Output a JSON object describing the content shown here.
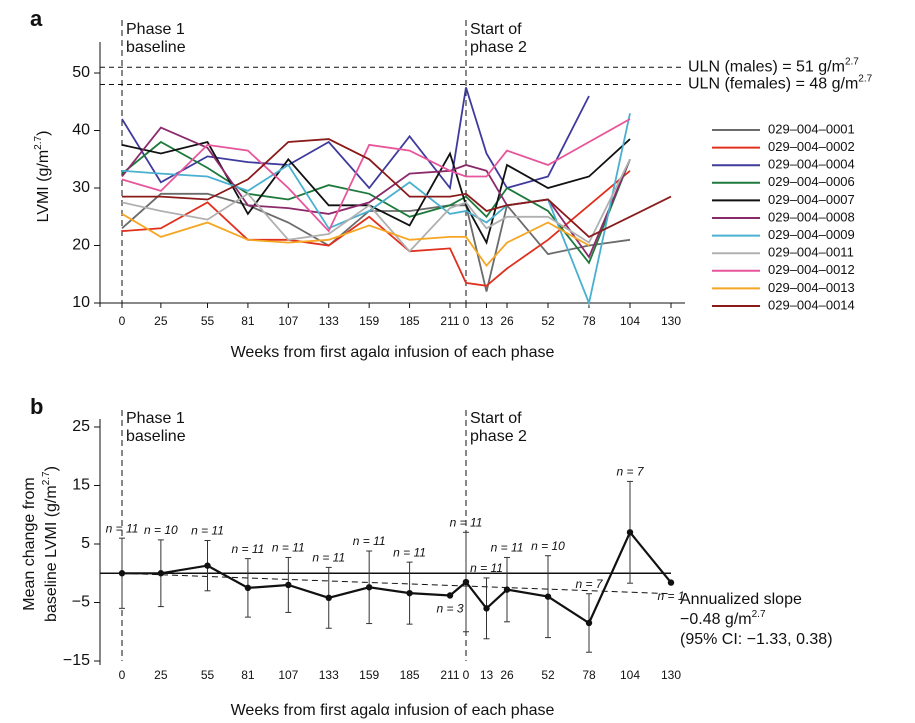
{
  "chart_data": [
    {
      "type": "line",
      "panel": "a",
      "ylabel": [
        "LVMI (g/m",
        "2.7",
        ")"
      ],
      "xlabel": "Weeks from first agalα infusion of each phase",
      "ylim": [
        10,
        54
      ],
      "yticks": [
        10,
        20,
        30,
        40,
        50
      ],
      "phases": [
        {
          "annotation": [
            "Phase 1",
            "baseline"
          ],
          "xlim": [
            0,
            211
          ],
          "x": [
            0,
            25,
            55,
            81,
            107,
            133,
            159,
            185,
            211
          ]
        },
        {
          "annotation": [
            "Start of",
            "phase 2"
          ],
          "xlim": [
            0,
            130
          ],
          "x": [
            0,
            13,
            26,
            52,
            78,
            104,
            130
          ]
        }
      ],
      "reference_lines": [
        {
          "value": 51,
          "label": [
            "ULN (males) = 51 g/m",
            "2.7"
          ]
        },
        {
          "value": 48,
          "label": [
            "ULN (females) = 48 g/m",
            "2.7"
          ]
        }
      ],
      "series": [
        {
          "name": "029–004–0001",
          "color": "#6b6b6b",
          "values": [
            [
              23,
              29,
              29,
              27,
              24,
              20,
              26,
              26,
              27
            ],
            [
              27,
              12,
              27,
              18.5,
              20,
              21,
              null
            ]
          ]
        },
        {
          "name": "029–004–0002",
          "color": "#e0301e",
          "values": [
            [
              22.5,
              23,
              27.5,
              21,
              21,
              20,
              25,
              19,
              19.5
            ],
            [
              13.5,
              13,
              16,
              21,
              27,
              33,
              null
            ]
          ]
        },
        {
          "name": "029–004–0004",
          "color": "#3f3a9e",
          "values": [
            [
              42,
              31,
              35.5,
              34.5,
              34,
              38,
              30,
              39,
              30
            ],
            [
              47.5,
              36,
              30,
              32,
              46,
              null,
              null
            ]
          ]
        },
        {
          "name": "029–004–0006",
          "color": "#1e7a3c",
          "values": [
            [
              32.5,
              38,
              33.5,
              29,
              28,
              30.5,
              29,
              25,
              27
            ],
            [
              28.5,
              25,
              30,
              26,
              17,
              35,
              null
            ]
          ]
        },
        {
          "name": "029–004–0007",
          "color": "#111111",
          "values": [
            [
              37.5,
              36,
              38,
              25.5,
              35,
              27,
              27,
              23.5,
              36
            ],
            [
              27,
              20.5,
              34,
              30,
              32,
              38.5,
              null
            ]
          ]
        },
        {
          "name": "029–004–0008",
          "color": "#8b2a6b",
          "values": [
            [
              32,
              40.5,
              37,
              27,
              26.5,
              25.5,
              27.5,
              32.5,
              33
            ],
            [
              34,
              33,
              27,
              28,
              18,
              35,
              null
            ]
          ]
        },
        {
          "name": "029–004–0009",
          "color": "#4ab0d0",
          "values": [
            [
              33,
              32.5,
              32,
              29.5,
              34,
              23,
              26,
              31,
              25.5
            ],
            [
              26,
              24,
              27,
              28,
              10,
              43,
              null
            ]
          ]
        },
        {
          "name": "029–004–0011",
          "color": "#b0b0b0",
          "values": [
            [
              27.5,
              26,
              24.5,
              29,
              21,
              22,
              27,
              19,
              26.5
            ],
            [
              27.5,
              23,
              25,
              25,
              20.5,
              35,
              null
            ]
          ]
        },
        {
          "name": "029–004–0012",
          "color": "#e8559a",
          "values": [
            [
              31.5,
              29.5,
              37.5,
              36.5,
              30,
              22.5,
              37.5,
              36.5,
              33
            ],
            [
              32,
              32,
              36.5,
              34,
              38,
              42,
              null
            ]
          ]
        },
        {
          "name": "029–004–0013",
          "color": "#f5a623",
          "values": [
            [
              25.5,
              21.5,
              24,
              21,
              20.5,
              21,
              23.5,
              21,
              21.5
            ],
            [
              21.5,
              16.5,
              20.5,
              24,
              20,
              null,
              null
            ]
          ]
        },
        {
          "name": "029–004–0014",
          "color": "#8b1a1a",
          "values": [
            [
              28.5,
              28.5,
              28,
              31.5,
              38,
              38.5,
              35,
              28.5,
              28.5
            ],
            [
              29,
              26,
              27,
              28,
              21.5,
              25,
              28.5
            ]
          ]
        }
      ]
    },
    {
      "type": "errorbar_line",
      "panel": "b",
      "ylabel": [
        [
          "Mean change from"
        ],
        [
          "baseline LVMI (g/m",
          "2.7",
          ")"
        ]
      ],
      "xlabel": "Weeks from first agalα infusion of each phase",
      "ylim": [
        -15,
        25
      ],
      "yticks": [
        {
          "value": -15,
          "label": "−15"
        },
        {
          "value": -5,
          "label": "−5"
        },
        5,
        15,
        25
      ],
      "phases": [
        {
          "annotation": [
            "Phase 1",
            "baseline"
          ],
          "xlim": [
            0,
            211
          ],
          "x": [
            0,
            25,
            55,
            81,
            107,
            133,
            159,
            185,
            211
          ]
        },
        {
          "annotation": [
            "Start of",
            "phase 2"
          ],
          "xlim": [
            0,
            130
          ],
          "x": [
            0,
            13,
            26,
            52,
            78,
            104,
            130
          ]
        }
      ],
      "reference_lines": [
        {
          "value": 0
        }
      ],
      "color": "#111111",
      "values": [
        [
          0,
          0,
          1.3,
          -2.5,
          -2,
          -4.2,
          -2.4,
          -3.4,
          -3.8
        ],
        [
          -1.5,
          -6,
          -2.8,
          -4,
          -8.5,
          7,
          -1.6
        ]
      ],
      "errors": [
        [
          6,
          5.7,
          4.3,
          5,
          4.7,
          5.2,
          6.2,
          5.3,
          null
        ],
        [
          8.5,
          5.2,
          5.5,
          7,
          5,
          8.7,
          null
        ]
      ],
      "n_labels": [
        [
          "n = 11",
          "n = 10",
          "n = 11",
          "n = 11",
          "n = 11",
          "n = 11",
          "n = 11",
          "n = 11",
          "n = 3"
        ],
        [
          "n = 11",
          "n = 11",
          "n = 11",
          "n = 10",
          "n = 7",
          "n = 7",
          "n = 1"
        ]
      ],
      "trend": [
        0,
        -3.5
      ],
      "annotation": [
        [
          "Annualized slope"
        ],
        [
          "−0.48 g/m",
          "2.7"
        ],
        [
          "(95% CI: −1.33, 0.38)"
        ]
      ]
    }
  ]
}
